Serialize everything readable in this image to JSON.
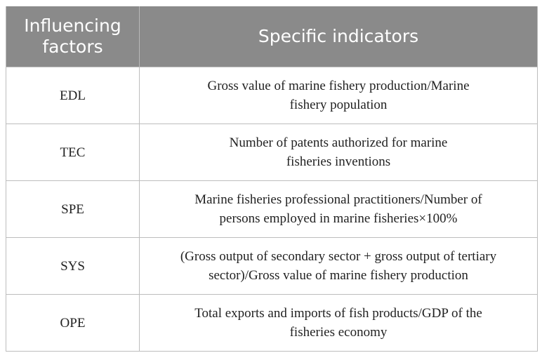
{
  "table": {
    "headers": [
      "Influencing factors",
      "Specific indicators"
    ],
    "rows": [
      {
        "factor": "EDL",
        "indicator_line1": "Gross value of marine fishery production/Marine",
        "indicator_line2": "fishery population"
      },
      {
        "factor": "TEC",
        "indicator_line1": "Number of patents authorized for marine",
        "indicator_line2": "fisheries inventions"
      },
      {
        "factor": "SPE",
        "indicator_line1": "Marine fisheries professional practitioners/Number of",
        "indicator_line2": "persons employed in marine fisheries×100%"
      },
      {
        "factor": "SYS",
        "indicator_line1": "(Gross output of secondary sector + gross output of tertiary",
        "indicator_line2": "sector)/Gross value of marine fishery production"
      },
      {
        "factor": "OPE",
        "indicator_line1": "Total exports and imports of fish products/GDP of the",
        "indicator_line2": "fisheries economy"
      }
    ]
  },
  "colors": {
    "header_bg": "#8a8a8a",
    "header_text": "#ffffff",
    "border": "#bdbdbd",
    "body_text": "#222222"
  }
}
